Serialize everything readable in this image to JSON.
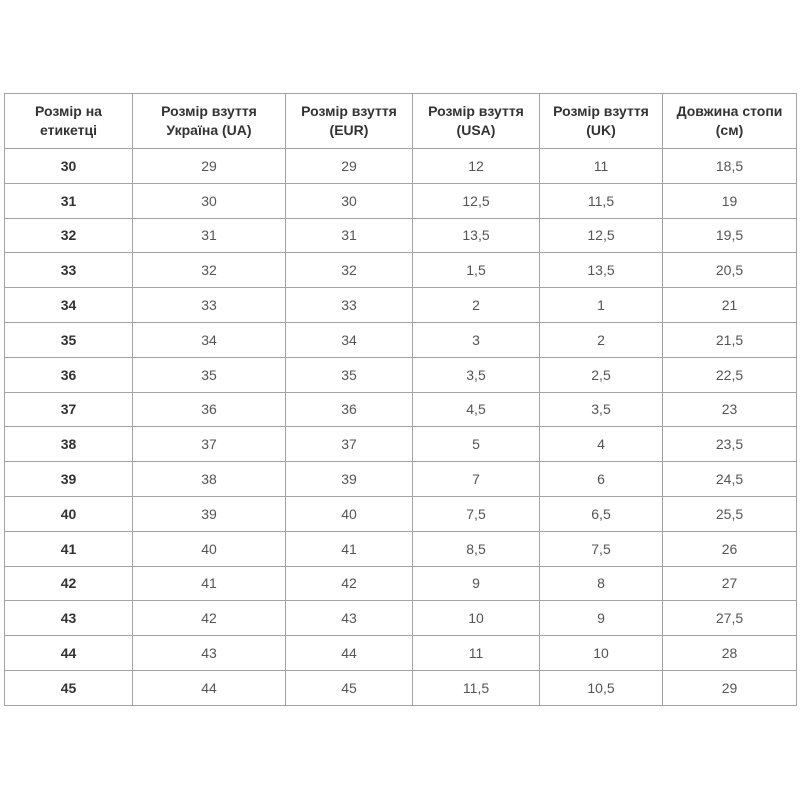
{
  "table": {
    "headers": [
      "Розмір на етикетці",
      "Розмір взуття Україна (UA)",
      "Розмір взуття (EUR)",
      "Розмір взуття (USA)",
      "Розмір взуття (UK)",
      "Довжина стопи (см)"
    ],
    "rows": [
      [
        "30",
        "29",
        "29",
        "12",
        "11",
        "18,5"
      ],
      [
        "31",
        "30",
        "30",
        "12,5",
        "11,5",
        "19"
      ],
      [
        "32",
        "31",
        "31",
        "13,5",
        "12,5",
        "19,5"
      ],
      [
        "33",
        "32",
        "32",
        "1,5",
        "13,5",
        "20,5"
      ],
      [
        "34",
        "33",
        "33",
        "2",
        "1",
        "21"
      ],
      [
        "35",
        "34",
        "34",
        "3",
        "2",
        "21,5"
      ],
      [
        "36",
        "35",
        "35",
        "3,5",
        "2,5",
        "22,5"
      ],
      [
        "37",
        "36",
        "36",
        "4,5",
        "3,5",
        "23"
      ],
      [
        "38",
        "37",
        "37",
        "5",
        "4",
        "23,5"
      ],
      [
        "39",
        "38",
        "39",
        "7",
        "6",
        "24,5"
      ],
      [
        "40",
        "39",
        "40",
        "7,5",
        "6,5",
        "25,5"
      ],
      [
        "41",
        "40",
        "41",
        "8,5",
        "7,5",
        "26"
      ],
      [
        "42",
        "41",
        "42",
        "9",
        "8",
        "27"
      ],
      [
        "43",
        "42",
        "43",
        "10",
        "9",
        "27,5"
      ],
      [
        "44",
        "43",
        "44",
        "11",
        "10",
        "28"
      ],
      [
        "45",
        "44",
        "45",
        "11,5",
        "10,5",
        "29"
      ]
    ]
  }
}
